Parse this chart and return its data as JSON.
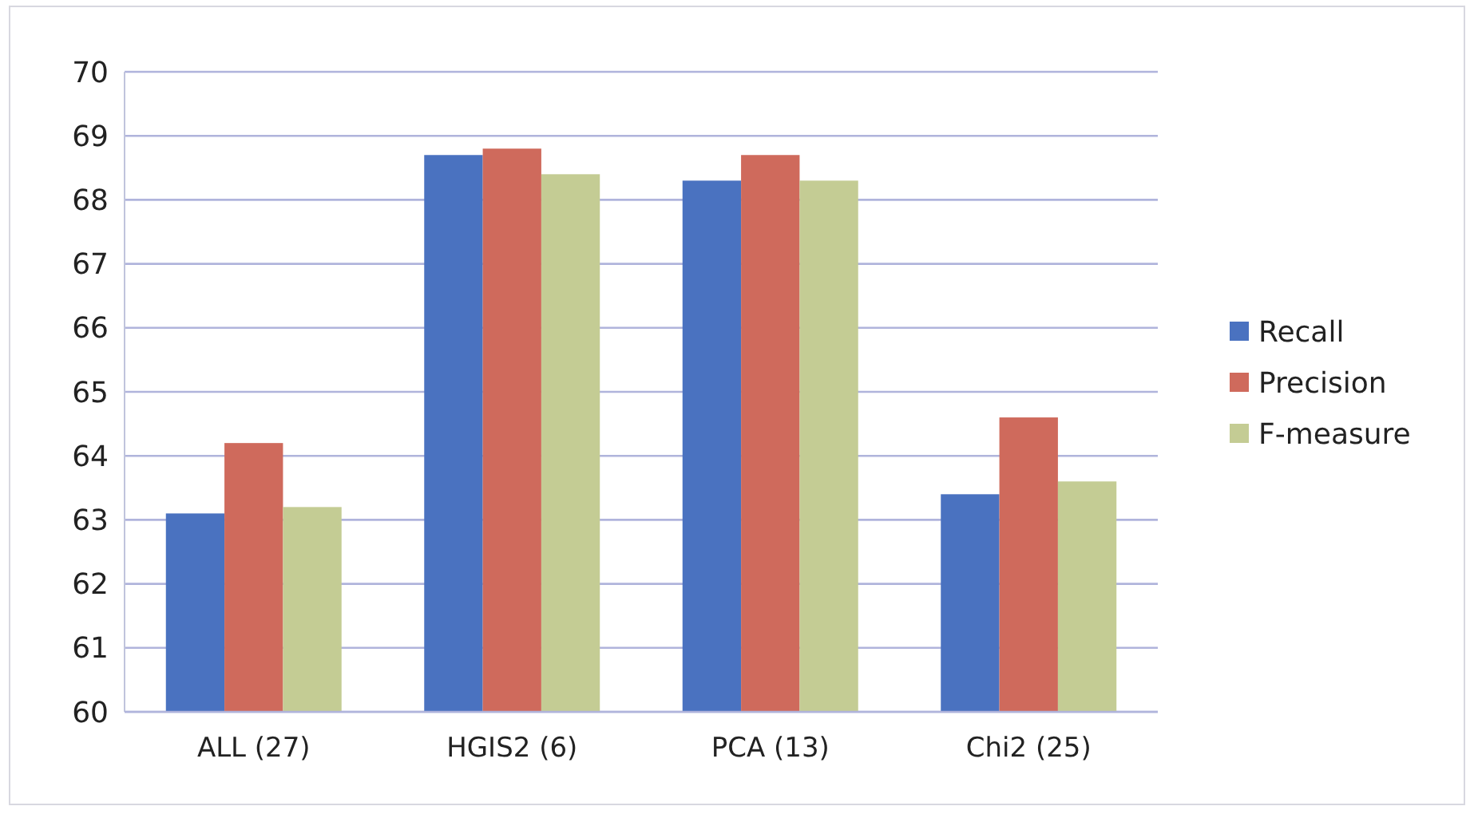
{
  "chart_data": {
    "type": "bar",
    "categories": [
      "ALL (27)",
      "HGIS2 (6)",
      "PCA (13)",
      "Chi2 (25)"
    ],
    "series": [
      {
        "name": "Recall",
        "color": "#4a72c0",
        "values": [
          63.1,
          68.7,
          68.3,
          63.4
        ]
      },
      {
        "name": "Precision",
        "color": "#cf6a5c",
        "values": [
          64.2,
          68.8,
          68.7,
          64.6
        ]
      },
      {
        "name": "F-measure",
        "color": "#c4cc94",
        "values": [
          63.2,
          68.4,
          68.3,
          63.6
        ]
      }
    ],
    "ylim": [
      60,
      70
    ],
    "yticks": [
      60,
      61,
      62,
      63,
      64,
      65,
      66,
      67,
      68,
      69,
      70
    ],
    "grid": "y",
    "legend": "right"
  }
}
